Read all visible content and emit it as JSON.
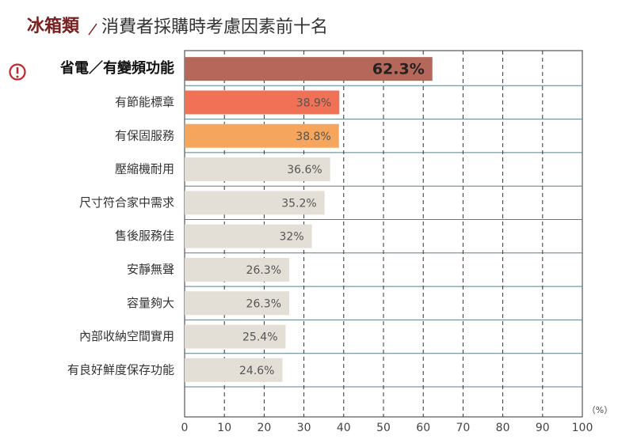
{
  "chart_data": {
    "type": "hbar",
    "title_prefix": "冰箱類",
    "title": "消費者採購時考慮因素前十名",
    "categories": [
      "省電／有變頻功能",
      "有節能標章",
      "有保固服務",
      "壓縮機耐用",
      "尺寸符合家中需求",
      "售後服務佳",
      "安靜無聲",
      "容量夠大",
      "內部收納空間實用",
      "有良好鮮度保存功能"
    ],
    "values": [
      62.3,
      38.9,
      38.8,
      36.6,
      35.2,
      32,
      26.3,
      26.3,
      25.4,
      24.6
    ],
    "value_labels": [
      "62.3%",
      "38.9%",
      "38.8%",
      "36.6%",
      "35.2%",
      "32%",
      "26.3%",
      "26.3%",
      "25.4%",
      "24.6%"
    ],
    "colors": [
      "#b5685a",
      "#f07155",
      "#f5a55c",
      "#e4dfd6",
      "#e4dfd6",
      "#e4dfd6",
      "#e4dfd6",
      "#e4dfd6",
      "#e4dfd6",
      "#e4dfd6"
    ],
    "xlim": [
      0,
      100
    ],
    "xticks": [
      0,
      10,
      20,
      30,
      40,
      50,
      60,
      70,
      80,
      90,
      100
    ],
    "x_unit": "（%）",
    "grid": true
  }
}
